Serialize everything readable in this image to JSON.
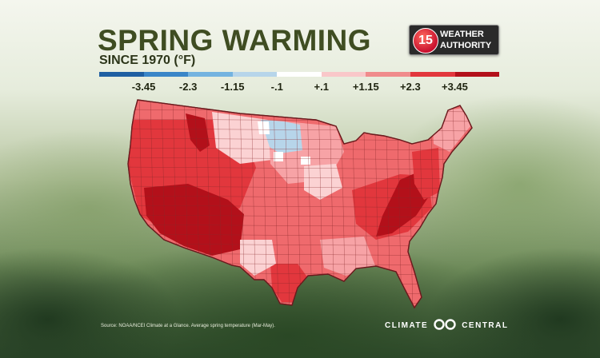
{
  "title": "SPRING WARMING",
  "subtitle": "SINCE 1970 (°F)",
  "logo": {
    "number": "15",
    "line1": "WEATHER",
    "line2": "AUTHORITY"
  },
  "legend": {
    "colors": [
      "#1f5fa2",
      "#3a86c8",
      "#74b3e0",
      "#b7d5ea",
      "#ffffff",
      "#f9c7c9",
      "#f08b8c",
      "#e2373d",
      "#b3101a"
    ],
    "labels": [
      "-3.45",
      "-2.3",
      "-1.15",
      "-.1",
      "+.1",
      "+1.15",
      "+2.3",
      "+3.45"
    ]
  },
  "map_colors": {
    "base": "#ef6a6d",
    "warm": "#e2373d",
    "hot": "#b3101a",
    "light": "#f7a3a6",
    "pale": "#fbd2d3",
    "white": "#ffffff",
    "cool": "#b7d5ea"
  },
  "source": "Source: NOAA/NCEI Climate at a Glance. Average spring temperature (Mar-May).",
  "brand": {
    "left": "CLIMATE",
    "right": "CENTRAL"
  }
}
